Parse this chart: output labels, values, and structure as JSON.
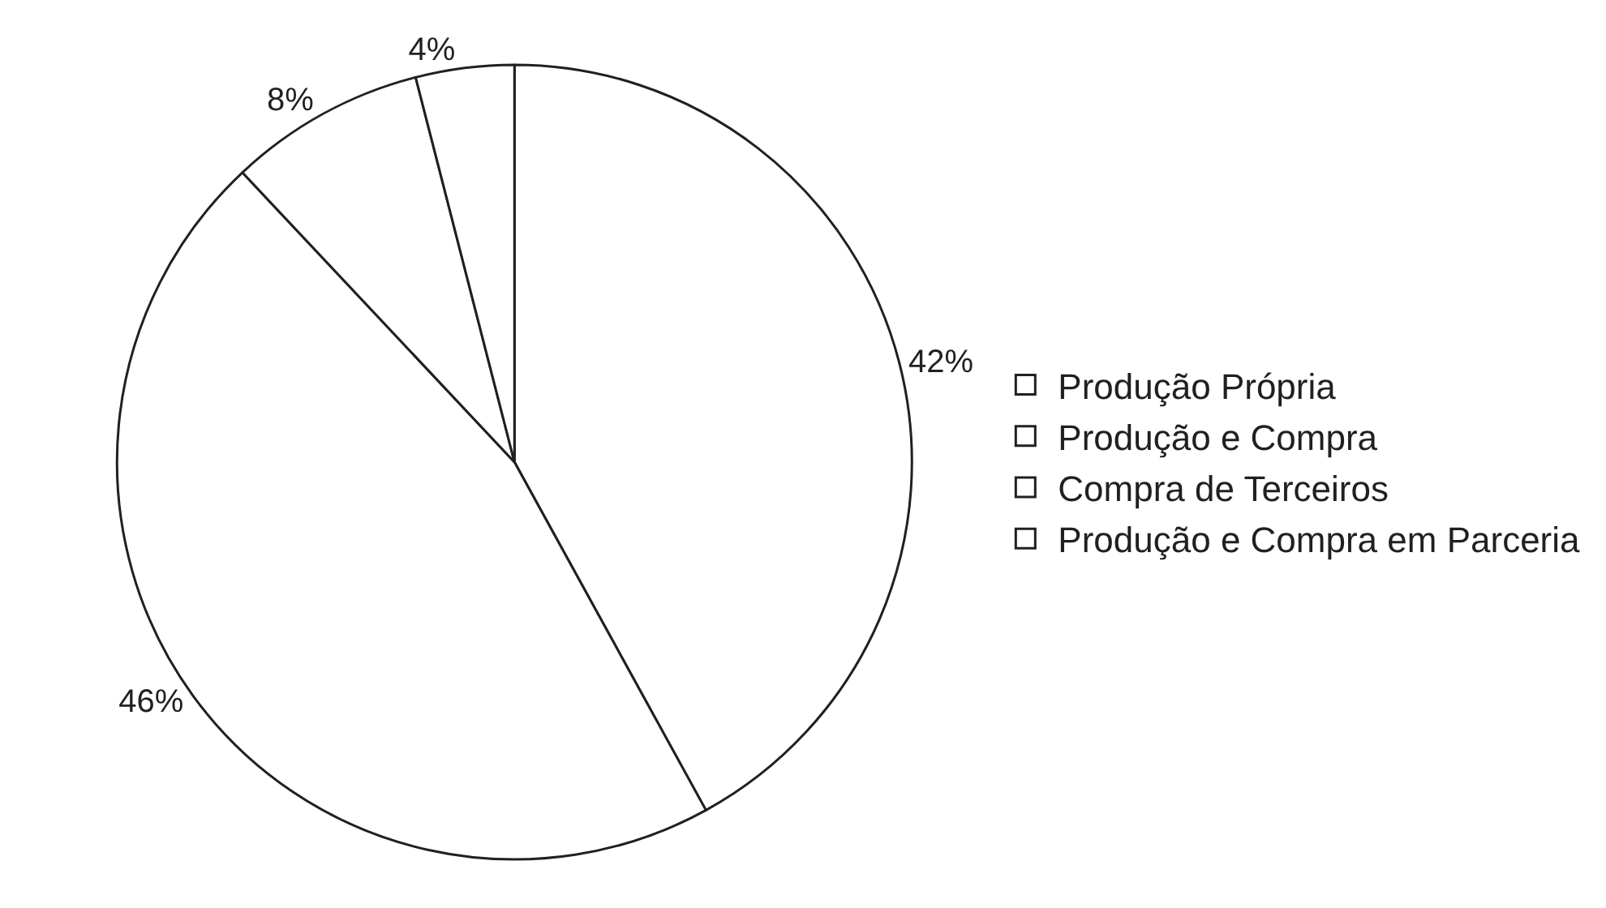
{
  "chart_data": {
    "type": "pie",
    "categories": [
      "Produção Própria",
      "Produção e Compra",
      "Compra de Terceiros",
      "Produção e Compra em Parceria"
    ],
    "values": [
      42,
      46,
      8,
      4
    ],
    "value_labels": [
      "42%",
      "46%",
      "8%",
      "4%"
    ],
    "colors": [
      "#ffffff",
      "#ffffff",
      "#ffffff",
      "#ffffff"
    ],
    "legend": "right"
  }
}
